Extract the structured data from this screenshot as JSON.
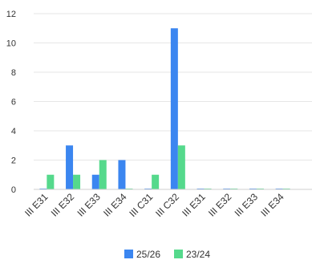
{
  "chart_data": {
    "type": "bar",
    "categories": [
      "III E31",
      "III E32",
      "III E33",
      "III E34",
      "III C31",
      "III C32",
      "III E31",
      "III E32",
      "III E33",
      "III E34"
    ],
    "series": [
      {
        "name": "25/26",
        "color": "#3b86f0",
        "values": [
          0,
          3,
          1,
          2,
          0,
          11,
          0,
          0,
          0,
          0
        ]
      },
      {
        "name": "23/24",
        "color": "#55d98c",
        "values": [
          1,
          1,
          2,
          0,
          1,
          3,
          0,
          0,
          0,
          0
        ]
      }
    ],
    "y_ticks": [
      "0",
      "2",
      "4",
      "6",
      "8",
      "10",
      "12"
    ],
    "ylim": [
      0,
      12
    ],
    "grid": true,
    "legend_position": "bottom-center"
  }
}
